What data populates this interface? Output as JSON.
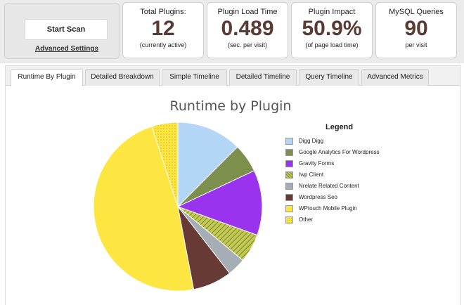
{
  "scan": {
    "start_label": "Start Scan",
    "advanced_label": "Advanced Settings"
  },
  "stats": [
    {
      "label": "Total Plugins:",
      "value": "12",
      "sub": "(currently active)"
    },
    {
      "label": "Plugin Load Time",
      "value": "0.489",
      "sub": "(sec. per visit)"
    },
    {
      "label": "Plugin Impact",
      "value": "50.9%",
      "sub": "(of page load time)"
    },
    {
      "label": "MySQL Queries",
      "value": "90",
      "sub": "per visit"
    }
  ],
  "tabs": [
    {
      "label": "Runtime By Plugin",
      "active": true
    },
    {
      "label": "Detailed Breakdown"
    },
    {
      "label": "Simple Timeline"
    },
    {
      "label": "Detailed Timeline"
    },
    {
      "label": "Query Timeline"
    },
    {
      "label": "Advanced Metrics"
    }
  ],
  "chart_data": {
    "type": "pie",
    "title": "Runtime by Plugin",
    "legend_title": "Legend",
    "legend_position": "right",
    "slices": [
      {
        "label": "Digg Digg",
        "value": 12.5,
        "color": "#b3d6f7"
      },
      {
        "label": "Google Analytics For Wordpress",
        "value": 5.5,
        "color": "#7c8f4c"
      },
      {
        "label": "Gravity Forms",
        "value": 12.5,
        "color": "#9933ee"
      },
      {
        "label": "Iwp Client",
        "value": 5.5,
        "color": "#b2ba44",
        "pattern": "hatch"
      },
      {
        "label": "Nrelate Related Content",
        "value": 3.5,
        "color": "#a7adb5"
      },
      {
        "label": "Wordpress Seo",
        "value": 7.5,
        "color": "#673a36"
      },
      {
        "label": "WPtouch Mobile Plugin",
        "value": 48.0,
        "color": "#fde642"
      },
      {
        "label": "Other",
        "value": 5.0,
        "color": "#fde642",
        "pattern": "dots"
      }
    ]
  }
}
